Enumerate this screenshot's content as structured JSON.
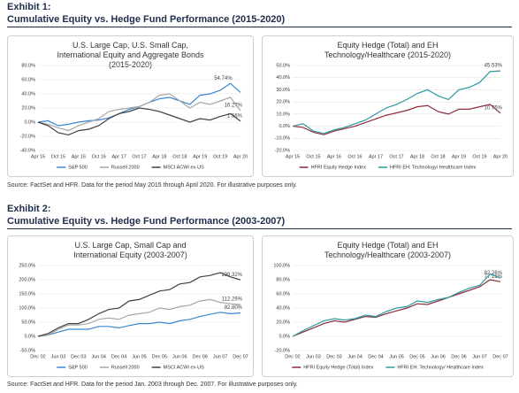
{
  "exhibits": [
    {
      "label": "Exhibit 1:",
      "title": "Cumulative Equity vs. Hedge Fund Performance (2015-2020)",
      "source": "Source: FactSet and HFR. Data for the period May 2015 through April 2020. For illustrative purposes only."
    },
    {
      "label": "Exhibit 2:",
      "title": "Cumulative Equity vs. Hedge Fund Performance (2003-2007)",
      "source": "Source: FactSet and HFR. Data for the period Jan. 2003 through Dec. 2007. For illustrative purposes only."
    }
  ],
  "chart_data": [
    {
      "type": "line",
      "title": "U.S. Large Cap, U.S. Small Cap, International Equity and Aggregate Bonds (2015-2020)",
      "categories": [
        "Apr 15",
        null,
        "Oct 15",
        null,
        "Apr 16",
        null,
        "Oct 16",
        null,
        "Apr 17",
        null,
        "Oct 17",
        null,
        "Apr 18",
        null,
        "Oct 18",
        null,
        "Apr 19",
        null,
        "Oct 19",
        null,
        "Apr 20"
      ],
      "ylim": [
        -40,
        80
      ],
      "yticks": [
        {
          "value": -40,
          "label": "-40.0%"
        },
        {
          "value": -20,
          "label": "-20.0%"
        },
        {
          "value": 0,
          "label": "0.0%"
        },
        {
          "value": 20,
          "label": "20.0%"
        },
        {
          "value": 40,
          "label": "40.0%"
        },
        {
          "value": 60,
          "label": "60.0%"
        },
        {
          "value": 80,
          "label": "80.0%"
        }
      ],
      "grid": true,
      "series": [
        {
          "name": "S&P 500",
          "color": "#3a86d4",
          "values": [
            0,
            2,
            -5,
            -3,
            0,
            2,
            3,
            6,
            12,
            18,
            22,
            28,
            33,
            35,
            30,
            25,
            38,
            40,
            45,
            54.74,
            42
          ],
          "value_labels": [
            null,
            null,
            null,
            null,
            null,
            null,
            null,
            null,
            null,
            null,
            null,
            null,
            null,
            null,
            null,
            null,
            null,
            null,
            null,
            "54.74%",
            null
          ]
        },
        {
          "name": "Russell 2000",
          "color": "#a6a6a6",
          "values": [
            0,
            -3,
            -8,
            -12,
            -5,
            0,
            5,
            15,
            18,
            20,
            22,
            28,
            38,
            40,
            30,
            20,
            28,
            25,
            30,
            35,
            16.27
          ],
          "value_labels": [
            null,
            null,
            null,
            null,
            null,
            null,
            null,
            null,
            null,
            null,
            null,
            null,
            null,
            null,
            null,
            null,
            null,
            null,
            null,
            null,
            "16.27%"
          ]
        },
        {
          "name": "MSCI ACWI ex-US",
          "color": "#404040",
          "values": [
            0,
            -5,
            -15,
            -18,
            -12,
            -10,
            -5,
            5,
            12,
            15,
            20,
            18,
            15,
            10,
            5,
            0,
            5,
            3,
            8,
            12,
            1.56
          ],
          "value_labels": [
            null,
            null,
            null,
            null,
            null,
            null,
            null,
            null,
            null,
            null,
            null,
            null,
            null,
            null,
            null,
            null,
            null,
            null,
            null,
            null,
            "1.56%"
          ]
        }
      ]
    },
    {
      "type": "line",
      "title": "Equity Hedge (Total) and EH Technology/Healthcare (2015-2020)",
      "categories": [
        "Apr 15",
        null,
        "Oct 15",
        null,
        "Apr 16",
        null,
        "Oct 16",
        null,
        "Apr 17",
        null,
        "Oct 17",
        null,
        "Apr 18",
        null,
        "Oct 18",
        null,
        "Apr 19",
        null,
        "Oct 19",
        null,
        "Apr 20"
      ],
      "ylim": [
        -20,
        50
      ],
      "yticks": [
        {
          "value": -20,
          "label": "-20.0%"
        },
        {
          "value": -10,
          "label": "-10.0%"
        },
        {
          "value": 0,
          "label": "0.0%"
        },
        {
          "value": 10,
          "label": "10.0%"
        },
        {
          "value": 20,
          "label": "20.0%"
        },
        {
          "value": 30,
          "label": "30.0%"
        },
        {
          "value": 40,
          "label": "40.0%"
        },
        {
          "value": 50,
          "label": "50.0%"
        }
      ],
      "grid": true,
      "series": [
        {
          "name": "HFRI Equity Hedge Index",
          "color": "#8e2a3a",
          "values": [
            0,
            -1,
            -5,
            -7,
            -4,
            -2,
            0,
            3,
            6,
            9,
            11,
            13,
            16,
            17,
            12,
            10,
            14,
            14,
            16,
            18,
            10.75
          ],
          "value_labels": [
            null,
            null,
            null,
            null,
            null,
            null,
            null,
            null,
            null,
            null,
            null,
            null,
            null,
            null,
            null,
            null,
            null,
            null,
            null,
            null,
            "10.75%"
          ]
        },
        {
          "name": "HFRI EH: Technology/ Healthcare Index",
          "color": "#2b9a9e",
          "values": [
            0,
            2,
            -4,
            -6,
            -3,
            -1,
            2,
            5,
            10,
            15,
            18,
            22,
            27,
            30,
            25,
            22,
            30,
            32,
            36,
            45,
            45.53
          ],
          "value_labels": [
            null,
            null,
            null,
            null,
            null,
            null,
            null,
            null,
            null,
            null,
            null,
            null,
            null,
            null,
            null,
            null,
            null,
            null,
            null,
            null,
            "45.53%"
          ]
        }
      ]
    },
    {
      "type": "line",
      "title": "U.S. Large Cap, Small Cap and International Equity (2003-2007)",
      "categories": [
        "Dec 02",
        null,
        "Jun 03",
        null,
        "Dec 03",
        null,
        "Jun 04",
        null,
        "Dec 04",
        null,
        "Jun 05",
        null,
        "Dec 05",
        null,
        "Jun 06",
        null,
        "Dec 06",
        null,
        "Jun 07",
        null,
        "Dec 07"
      ],
      "ylim": [
        -50,
        250
      ],
      "yticks": [
        {
          "value": -50,
          "label": "-50.0%"
        },
        {
          "value": 0,
          "label": "0.0%"
        },
        {
          "value": 50,
          "label": "50.0%"
        },
        {
          "value": 100,
          "label": "100.0%"
        },
        {
          "value": 150,
          "label": "150.0%"
        },
        {
          "value": 200,
          "label": "200.0%"
        },
        {
          "value": 250,
          "label": "250.0%"
        }
      ],
      "grid": true,
      "series": [
        {
          "name": "S&P 500",
          "color": "#3a86d4",
          "values": [
            0,
            5,
            15,
            25,
            25,
            25,
            35,
            35,
            30,
            38,
            45,
            45,
            50,
            45,
            55,
            60,
            70,
            78,
            85,
            80,
            82.8
          ],
          "value_labels": [
            null,
            null,
            null,
            null,
            null,
            null,
            null,
            null,
            null,
            null,
            null,
            null,
            null,
            null,
            null,
            null,
            null,
            null,
            null,
            null,
            "82.80%"
          ]
        },
        {
          "name": "Russell 2000",
          "color": "#a6a6a6",
          "values": [
            0,
            5,
            25,
            40,
            40,
            45,
            60,
            65,
            60,
            75,
            80,
            85,
            100,
            95,
            105,
            110,
            125,
            130,
            120,
            115,
            112.26
          ],
          "value_labels": [
            null,
            null,
            null,
            null,
            null,
            null,
            null,
            null,
            null,
            null,
            null,
            null,
            null,
            null,
            null,
            null,
            null,
            null,
            null,
            null,
            "112.26%"
          ]
        },
        {
          "name": "MSCI ACWI ex-US",
          "color": "#404040",
          "values": [
            0,
            10,
            30,
            45,
            45,
            60,
            80,
            95,
            100,
            125,
            130,
            145,
            160,
            165,
            185,
            190,
            210,
            215,
            225,
            210,
            199.32
          ],
          "value_labels": [
            null,
            null,
            null,
            null,
            null,
            null,
            null,
            null,
            null,
            null,
            null,
            null,
            null,
            null,
            null,
            null,
            null,
            null,
            null,
            null,
            "199.32%"
          ]
        }
      ]
    },
    {
      "type": "line",
      "title": "Equity Hedge (Total) and EH Technology/Healthcare (2003-2007)",
      "categories": [
        "Dec 02",
        null,
        "Jun 03",
        null,
        "Dec 03",
        null,
        "Jun 04",
        null,
        "Dec 04",
        null,
        "Jun 05",
        null,
        "Dec 05",
        null,
        "Jun 06",
        null,
        "Dec 06",
        null,
        "Jun 07",
        null,
        "Dec 07"
      ],
      "ylim": [
        -20,
        100
      ],
      "yticks": [
        {
          "value": -20,
          "label": "-20.0%"
        },
        {
          "value": 0,
          "label": "0.0%"
        },
        {
          "value": 20,
          "label": "20.0%"
        },
        {
          "value": 40,
          "label": "40.0%"
        },
        {
          "value": 60,
          "label": "60.0%"
        },
        {
          "value": 80,
          "label": "80.0%"
        },
        {
          "value": 100,
          "label": "100.0%"
        }
      ],
      "grid": true,
      "series": [
        {
          "name": "HFRI Equity Hedge (Total) Index",
          "color": "#8e2a3a",
          "values": [
            0,
            6,
            12,
            18,
            22,
            20,
            24,
            28,
            27,
            32,
            36,
            40,
            46,
            45,
            50,
            55,
            60,
            65,
            70,
            80,
            77.15
          ],
          "value_labels": [
            null,
            null,
            null,
            null,
            null,
            null,
            null,
            null,
            null,
            null,
            null,
            null,
            null,
            null,
            null,
            null,
            null,
            null,
            null,
            null,
            "77.15%"
          ]
        },
        {
          "name": "HFRI EH: Technology/ Healthcare Index",
          "color": "#2b9a9e",
          "values": [
            0,
            8,
            15,
            22,
            25,
            23,
            25,
            30,
            28,
            35,
            40,
            42,
            50,
            48,
            52,
            55,
            62,
            68,
            72,
            88,
            82.26
          ],
          "value_labels": [
            null,
            null,
            null,
            null,
            null,
            null,
            null,
            null,
            null,
            null,
            null,
            null,
            null,
            null,
            null,
            null,
            null,
            null,
            null,
            null,
            "82.26%"
          ]
        }
      ]
    }
  ]
}
